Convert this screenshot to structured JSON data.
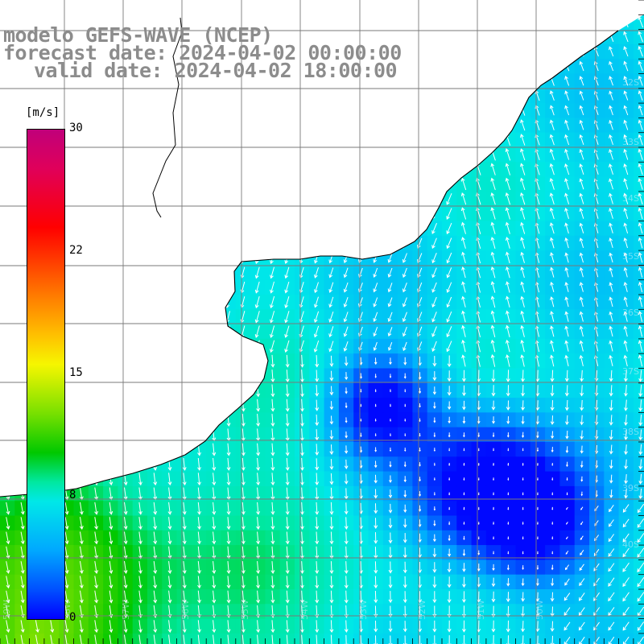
{
  "title": {
    "line1": "modelo GEFS-WAVE (NCEP)",
    "line2": "forecast date: 2024-04-02 00:00:00",
    "line3": "valid date: 2024-04-02 18:00:00"
  },
  "colorbar": {
    "unit": "[m/s]",
    "ticks": [
      "30",
      "22",
      "15",
      "8",
      "0"
    ],
    "min": 0,
    "max": 30
  },
  "colors": {
    "land": "#ffffff",
    "coastline": "#000000",
    "grid": "#7a7a7a",
    "arrows": "#ffffff",
    "title": "#8c8c8c",
    "speed_low": "#0000ff",
    "speed_mid": "#00e8e8",
    "speed_high": "#00c800"
  },
  "axes": {
    "lon_labels": [
      "59W",
      "58W",
      "57W",
      "56W",
      "55W",
      "54W",
      "53W",
      "52W",
      "51W",
      "50W"
    ],
    "lat_labels": [
      "32S",
      "33S",
      "34S",
      "35S",
      "36S",
      "37S",
      "38S",
      "39S",
      "40S"
    ]
  }
}
